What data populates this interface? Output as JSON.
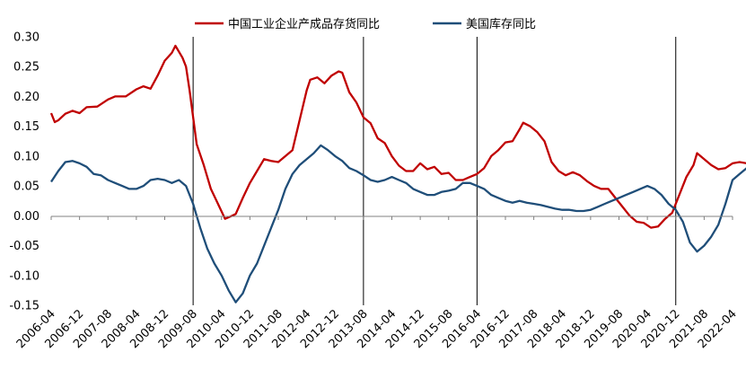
{
  "chart_data": {
    "type": "line",
    "title": "",
    "xlabel": "",
    "ylabel": "",
    "ylim": [
      -0.15,
      0.3
    ],
    "y_ticks": [
      "0.30",
      "0.25",
      "0.20",
      "0.15",
      "0.10",
      "0.05",
      "0.00",
      "-0.05",
      "-0.10",
      "-0.15"
    ],
    "x_tick_labels": [
      "2006-04",
      "2006-12",
      "2007-08",
      "2008-04",
      "2008-12",
      "2009-08",
      "2010-04",
      "2010-12",
      "2011-08",
      "2012-04",
      "2012-12",
      "2013-08",
      "2014-04",
      "2014-12",
      "2015-08",
      "2016-04",
      "2016-12",
      "2017-08",
      "2018-04",
      "2018-12",
      "2019-08",
      "2020-04",
      "2020-12",
      "2021-08",
      "2022-04"
    ],
    "grid": false,
    "legend_position": "top",
    "vertical_markers": [
      "2009-08",
      "2013-08",
      "2016-04",
      "2020-12"
    ],
    "series": [
      {
        "name": "中国工业企业产成品存货同比",
        "color": "#C00000",
        "points": [
          [
            "2006-04",
            0.172
          ],
          [
            "2006-05",
            0.157
          ],
          [
            "2006-06",
            0.16
          ],
          [
            "2006-08",
            0.171
          ],
          [
            "2006-10",
            0.176
          ],
          [
            "2006-12",
            0.172
          ],
          [
            "2007-02",
            0.182
          ],
          [
            "2007-05",
            0.183
          ],
          [
            "2007-08",
            0.195
          ],
          [
            "2007-10",
            0.2
          ],
          [
            "2008-01",
            0.2
          ],
          [
            "2008-04",
            0.212
          ],
          [
            "2008-06",
            0.217
          ],
          [
            "2008-08",
            0.213
          ],
          [
            "2008-10",
            0.235
          ],
          [
            "2008-12",
            0.26
          ],
          [
            "2009-02",
            0.273
          ],
          [
            "2009-03",
            0.285
          ],
          [
            "2009-05",
            0.265
          ],
          [
            "2009-06",
            0.25
          ],
          [
            "2009-07",
            0.21
          ],
          [
            "2009-09",
            0.12
          ],
          [
            "2009-11",
            0.085
          ],
          [
            "2010-01",
            0.045
          ],
          [
            "2010-03",
            0.02
          ],
          [
            "2010-05",
            -0.005
          ],
          [
            "2010-07",
            0.0
          ],
          [
            "2010-08",
            0.003
          ],
          [
            "2010-10",
            0.03
          ],
          [
            "2010-12",
            0.055
          ],
          [
            "2011-02",
            0.075
          ],
          [
            "2011-04",
            0.095
          ],
          [
            "2011-06",
            0.092
          ],
          [
            "2011-08",
            0.09
          ],
          [
            "2011-10",
            0.1
          ],
          [
            "2011-12",
            0.11
          ],
          [
            "2012-02",
            0.16
          ],
          [
            "2012-04",
            0.21
          ],
          [
            "2012-05",
            0.228
          ],
          [
            "2012-07",
            0.232
          ],
          [
            "2012-09",
            0.222
          ],
          [
            "2012-11",
            0.235
          ],
          [
            "2013-01",
            0.242
          ],
          [
            "2013-02",
            0.24
          ],
          [
            "2013-04",
            0.207
          ],
          [
            "2013-06",
            0.19
          ],
          [
            "2013-08",
            0.165
          ],
          [
            "2013-10",
            0.155
          ],
          [
            "2013-12",
            0.13
          ],
          [
            "2014-02",
            0.122
          ],
          [
            "2014-04",
            0.1
          ],
          [
            "2014-06",
            0.084
          ],
          [
            "2014-08",
            0.075
          ],
          [
            "2014-10",
            0.075
          ],
          [
            "2014-12",
            0.088
          ],
          [
            "2015-02",
            0.078
          ],
          [
            "2015-04",
            0.082
          ],
          [
            "2015-06",
            0.07
          ],
          [
            "2015-08",
            0.072
          ],
          [
            "2015-10",
            0.06
          ],
          [
            "2015-12",
            0.06
          ],
          [
            "2016-02",
            0.065
          ],
          [
            "2016-04",
            0.07
          ],
          [
            "2016-06",
            0.08
          ],
          [
            "2016-08",
            0.1
          ],
          [
            "2016-10",
            0.11
          ],
          [
            "2016-12",
            0.123
          ],
          [
            "2017-02",
            0.125
          ],
          [
            "2017-04",
            0.145
          ],
          [
            "2017-05",
            0.156
          ],
          [
            "2017-07",
            0.15
          ],
          [
            "2017-09",
            0.14
          ],
          [
            "2017-11",
            0.125
          ],
          [
            "2018-01",
            0.09
          ],
          [
            "2018-03",
            0.075
          ],
          [
            "2018-05",
            0.068
          ],
          [
            "2018-07",
            0.073
          ],
          [
            "2018-09",
            0.068
          ],
          [
            "2018-11",
            0.058
          ],
          [
            "2019-01",
            0.05
          ],
          [
            "2019-03",
            0.045
          ],
          [
            "2019-05",
            0.045
          ],
          [
            "2019-07",
            0.03
          ],
          [
            "2019-09",
            0.015
          ],
          [
            "2019-11",
            0.0
          ],
          [
            "2020-01",
            -0.01
          ],
          [
            "2020-03",
            -0.012
          ],
          [
            "2020-05",
            -0.02
          ],
          [
            "2020-07",
            -0.018
          ],
          [
            "2020-09",
            -0.005
          ],
          [
            "2020-11",
            0.005
          ],
          [
            "2021-01",
            0.035
          ],
          [
            "2021-03",
            0.065
          ],
          [
            "2021-05",
            0.085
          ],
          [
            "2021-06",
            0.105
          ],
          [
            "2021-08",
            0.095
          ],
          [
            "2021-10",
            0.085
          ],
          [
            "2021-12",
            0.078
          ],
          [
            "2022-02",
            0.08
          ],
          [
            "2022-04",
            0.088
          ],
          [
            "2022-06",
            0.09
          ],
          [
            "2022-08",
            0.088
          ]
        ]
      },
      {
        "name": "美国库存同比",
        "color": "#1F4E79",
        "points": [
          [
            "2006-04",
            0.057
          ],
          [
            "2006-06",
            0.075
          ],
          [
            "2006-08",
            0.09
          ],
          [
            "2006-10",
            0.092
          ],
          [
            "2006-12",
            0.088
          ],
          [
            "2007-02",
            0.082
          ],
          [
            "2007-04",
            0.07
          ],
          [
            "2007-06",
            0.068
          ],
          [
            "2007-08",
            0.06
          ],
          [
            "2007-10",
            0.055
          ],
          [
            "2007-12",
            0.05
          ],
          [
            "2008-02",
            0.045
          ],
          [
            "2008-04",
            0.045
          ],
          [
            "2008-06",
            0.05
          ],
          [
            "2008-08",
            0.06
          ],
          [
            "2008-10",
            0.062
          ],
          [
            "2008-12",
            0.06
          ],
          [
            "2009-02",
            0.055
          ],
          [
            "2009-04",
            0.06
          ],
          [
            "2009-06",
            0.05
          ],
          [
            "2009-08",
            0.02
          ],
          [
            "2009-10",
            -0.02
          ],
          [
            "2009-12",
            -0.055
          ],
          [
            "2010-02",
            -0.08
          ],
          [
            "2010-04",
            -0.1
          ],
          [
            "2010-06",
            -0.125
          ],
          [
            "2010-08",
            -0.145
          ],
          [
            "2010-10",
            -0.13
          ],
          [
            "2010-12",
            -0.1
          ],
          [
            "2011-02",
            -0.08
          ],
          [
            "2011-04",
            -0.05
          ],
          [
            "2011-06",
            -0.02
          ],
          [
            "2011-08",
            0.01
          ],
          [
            "2011-10",
            0.045
          ],
          [
            "2011-12",
            0.07
          ],
          [
            "2012-02",
            0.085
          ],
          [
            "2012-04",
            0.095
          ],
          [
            "2012-06",
            0.105
          ],
          [
            "2012-08",
            0.118
          ],
          [
            "2012-10",
            0.11
          ],
          [
            "2012-12",
            0.1
          ],
          [
            "2013-02",
            0.092
          ],
          [
            "2013-04",
            0.08
          ],
          [
            "2013-06",
            0.075
          ],
          [
            "2013-08",
            0.068
          ],
          [
            "2013-10",
            0.06
          ],
          [
            "2013-12",
            0.057
          ],
          [
            "2014-02",
            0.06
          ],
          [
            "2014-04",
            0.065
          ],
          [
            "2014-06",
            0.06
          ],
          [
            "2014-08",
            0.055
          ],
          [
            "2014-10",
            0.045
          ],
          [
            "2014-12",
            0.04
          ],
          [
            "2015-02",
            0.035
          ],
          [
            "2015-04",
            0.035
          ],
          [
            "2015-06",
            0.04
          ],
          [
            "2015-08",
            0.042
          ],
          [
            "2015-10",
            0.045
          ],
          [
            "2015-12",
            0.055
          ],
          [
            "2016-02",
            0.055
          ],
          [
            "2016-04",
            0.05
          ],
          [
            "2016-06",
            0.045
          ],
          [
            "2016-08",
            0.035
          ],
          [
            "2016-10",
            0.03
          ],
          [
            "2016-12",
            0.025
          ],
          [
            "2017-02",
            0.022
          ],
          [
            "2017-04",
            0.025
          ],
          [
            "2017-06",
            0.022
          ],
          [
            "2017-08",
            0.02
          ],
          [
            "2017-10",
            0.018
          ],
          [
            "2017-12",
            0.015
          ],
          [
            "2018-02",
            0.012
          ],
          [
            "2018-04",
            0.01
          ],
          [
            "2018-06",
            0.01
          ],
          [
            "2018-08",
            0.008
          ],
          [
            "2018-10",
            0.008
          ],
          [
            "2018-12",
            0.01
          ],
          [
            "2019-02",
            0.015
          ],
          [
            "2019-04",
            0.02
          ],
          [
            "2019-06",
            0.025
          ],
          [
            "2019-08",
            0.03
          ],
          [
            "2019-10",
            0.035
          ],
          [
            "2019-12",
            0.04
          ],
          [
            "2020-02",
            0.045
          ],
          [
            "2020-04",
            0.05
          ],
          [
            "2020-06",
            0.045
          ],
          [
            "2020-08",
            0.035
          ],
          [
            "2020-10",
            0.02
          ],
          [
            "2020-12",
            0.01
          ],
          [
            "2021-02",
            -0.01
          ],
          [
            "2021-04",
            -0.045
          ],
          [
            "2021-06",
            -0.06
          ],
          [
            "2021-08",
            -0.05
          ],
          [
            "2021-10",
            -0.035
          ],
          [
            "2021-12",
            -0.015
          ],
          [
            "2022-02",
            0.02
          ],
          [
            "2022-04",
            0.06
          ],
          [
            "2022-06",
            0.07
          ],
          [
            "2022-08",
            0.08
          ],
          [
            "2022-09",
            0.098
          ]
        ]
      }
    ]
  }
}
